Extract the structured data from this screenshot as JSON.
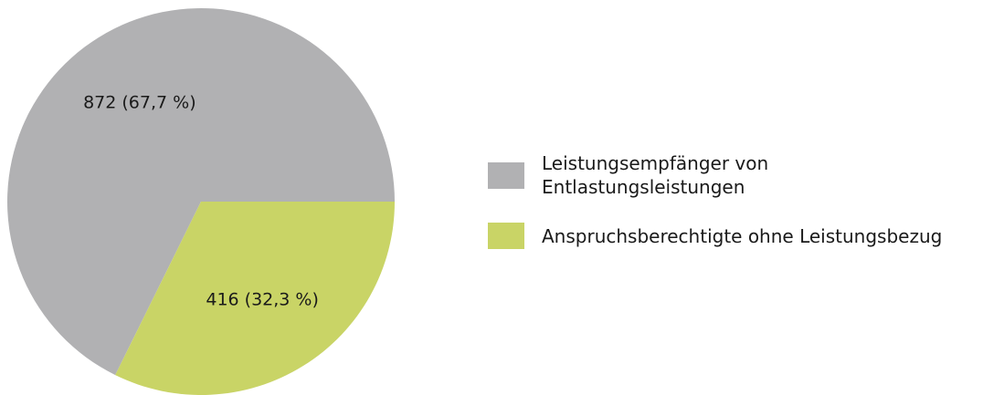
{
  "chart_data": {
    "type": "pie",
    "categories": [
      "Leistungsempfänger von Entlastungsleistungen",
      "Anspruchsberechtigte ohne Leistungsbezug"
    ],
    "values": [
      872,
      416
    ],
    "value_labels": [
      "872 (67,7 %)",
      "416 (32,3 %)"
    ],
    "colors": [
      "#b1b1b3",
      "#c9d466"
    ],
    "legend": "right"
  }
}
